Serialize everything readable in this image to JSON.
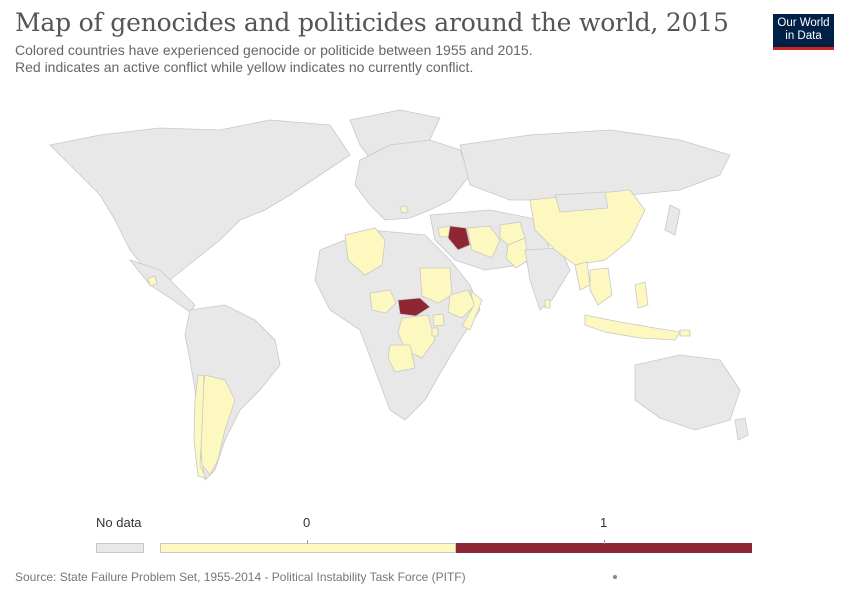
{
  "header": {
    "title": "Map of genocides and politicides around the world, 2015",
    "subtitle_line1": "Colored countries have experienced genocide or politicide between 1955 and 2015.",
    "subtitle_line2": "Red indicates an active conflict while yellow indicates no currently conflict."
  },
  "logo": {
    "line1": "Our World",
    "line2": "in Data"
  },
  "legend": {
    "no_data_label": "No data",
    "label_0": "0",
    "label_1": "1",
    "colors": {
      "no_data": "#e8e8e8",
      "zero": "#fdf7c0",
      "one": "#8e2733",
      "border": "#c8c8c8"
    }
  },
  "map_data": {
    "active_conflict": [
      "Iraq",
      "Central African Republic"
    ],
    "past_conflict": [
      "Guatemala",
      "Argentina",
      "Chile",
      "Algeria",
      "Nigeria",
      "Sudan",
      "Ethiopia",
      "Somalia",
      "Uganda",
      "Rwanda",
      "Burundi",
      "Democratic Republic of the Congo",
      "Angola",
      "Iran",
      "Syria",
      "Afghanistan",
      "Pakistan",
      "China",
      "Myanmar",
      "Cambodia",
      "Vietnam",
      "Sri Lanka",
      "Indonesia",
      "Philippines",
      "East Timor",
      "Bosnia and Herzegovina"
    ]
  },
  "footer": {
    "source": "Source: State Failure Problem Set, 1955-2014 - Political Instability Task Force (PITF)"
  }
}
